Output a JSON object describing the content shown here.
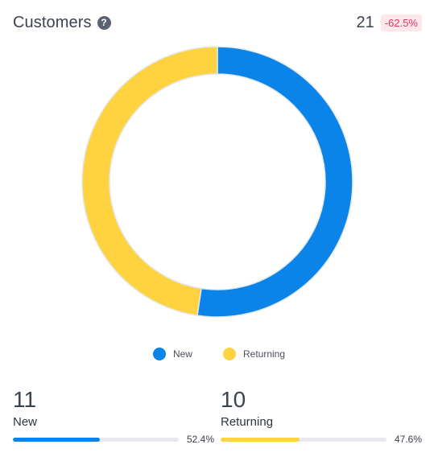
{
  "header": {
    "title": "Customers",
    "help_icon": "question-icon",
    "total": "21",
    "change": "-62.5%"
  },
  "colors": {
    "new": "#0a84e8",
    "returning": "#ffd23f",
    "track": "#e7e9ef",
    "badge_bg": "#fde7ea",
    "badge_text": "#e0365a"
  },
  "chart_data": {
    "type": "pie",
    "variant": "donut",
    "categories": [
      "New",
      "Returning"
    ],
    "values": [
      11,
      10
    ],
    "percentages": [
      52.4,
      47.6
    ],
    "legend_position": "bottom"
  },
  "legend": [
    {
      "label": "New"
    },
    {
      "label": "Returning"
    }
  ],
  "stats": [
    {
      "value": "11",
      "label": "New",
      "percent_text": "52.4%",
      "fraction": 0.524
    },
    {
      "value": "10",
      "label": "Returning",
      "percent_text": "47.6%",
      "fraction": 0.476
    }
  ]
}
